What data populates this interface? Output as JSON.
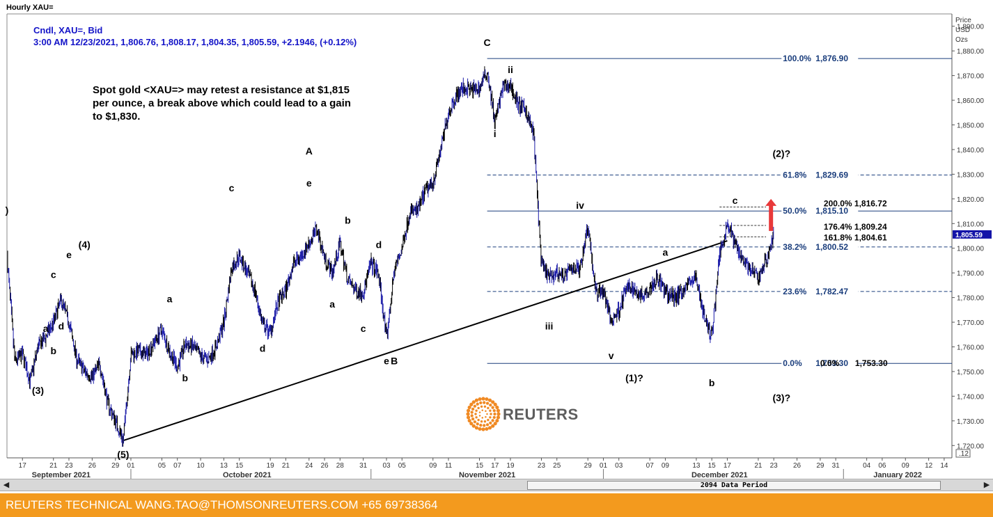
{
  "window": {
    "title": "Hourly XAU="
  },
  "chart_data": {
    "type": "candlestick",
    "instrument": "XAU=",
    "info_lines": [
      "Cndl, XAU=, Bid",
      "3:00 AM 12/23/2021, 1,806.76, 1,808.17, 1,804.35, 1,805.59, +2.1946, (+0.12%)"
    ],
    "last_price": "1,805.59",
    "y_axis": {
      "title": [
        "Price",
        "USD",
        "Ozs"
      ],
      "range": [
        1715,
        1895
      ],
      "ticks": [
        1720,
        1730,
        1740,
        1750,
        1760,
        1770,
        1780,
        1790,
        1800,
        1810,
        1820,
        1830,
        1840,
        1850,
        1860,
        1870,
        1880,
        1890
      ],
      "tick_labels": [
        "1,720.00",
        "1,730.00",
        "1,740.00",
        "1,750.00",
        "1,760.00",
        "1,770.00",
        "1,780.00",
        "1,790.00",
        "1,800.00",
        "1,810.00",
        "1,820.00",
        "1,830.00",
        "1,840.00",
        "1,850.00",
        "1,860.00",
        "1,870.00",
        "1,880.00",
        "1,890.00"
      ],
      "scale_label": ".12"
    },
    "x_axis": {
      "start": "2021-09-15",
      "end": "2022-01-15",
      "day_ticks": [
        {
          "date": "2021-09-17",
          "label": "17"
        },
        {
          "date": "2021-09-21",
          "label": "21"
        },
        {
          "date": "2021-09-23",
          "label": "23"
        },
        {
          "date": "2021-09-26",
          "label": "26"
        },
        {
          "date": "2021-09-29",
          "label": "29"
        },
        {
          "date": "2021-10-01",
          "label": "01"
        },
        {
          "date": "2021-10-05",
          "label": "05"
        },
        {
          "date": "2021-10-07",
          "label": "07"
        },
        {
          "date": "2021-10-10",
          "label": "10"
        },
        {
          "date": "2021-10-13",
          "label": "13"
        },
        {
          "date": "2021-10-15",
          "label": "15"
        },
        {
          "date": "2021-10-19",
          "label": "19"
        },
        {
          "date": "2021-10-21",
          "label": "21"
        },
        {
          "date": "2021-10-24",
          "label": "24"
        },
        {
          "date": "2021-10-26",
          "label": "26"
        },
        {
          "date": "2021-10-28",
          "label": "28"
        },
        {
          "date": "2021-10-31",
          "label": "31"
        },
        {
          "date": "2021-11-03",
          "label": "03"
        },
        {
          "date": "2021-11-05",
          "label": "05"
        },
        {
          "date": "2021-11-09",
          "label": "09"
        },
        {
          "date": "2021-11-11",
          "label": "11"
        },
        {
          "date": "2021-11-15",
          "label": "15"
        },
        {
          "date": "2021-11-17",
          "label": "17"
        },
        {
          "date": "2021-11-19",
          "label": "19"
        },
        {
          "date": "2021-11-23",
          "label": "23"
        },
        {
          "date": "2021-11-25",
          "label": "25"
        },
        {
          "date": "2021-11-29",
          "label": "29"
        },
        {
          "date": "2021-12-01",
          "label": "01"
        },
        {
          "date": "2021-12-03",
          "label": "03"
        },
        {
          "date": "2021-12-07",
          "label": "07"
        },
        {
          "date": "2021-12-09",
          "label": "09"
        },
        {
          "date": "2021-12-13",
          "label": "13"
        },
        {
          "date": "2021-12-15",
          "label": "15"
        },
        {
          "date": "2021-12-17",
          "label": "17"
        },
        {
          "date": "2021-12-21",
          "label": "21"
        },
        {
          "date": "2021-12-23",
          "label": "23"
        },
        {
          "date": "2021-12-26",
          "label": "26"
        },
        {
          "date": "2021-12-29",
          "label": "29"
        },
        {
          "date": "2021-12-31",
          "label": "31"
        },
        {
          "date": "2022-01-04",
          "label": "04"
        },
        {
          "date": "2022-01-06",
          "label": "06"
        },
        {
          "date": "2022-01-09",
          "label": "09"
        },
        {
          "date": "2022-01-12",
          "label": "12"
        },
        {
          "date": "2022-01-14",
          "label": "14"
        }
      ],
      "months": [
        {
          "label": "September 2021",
          "mid": "2021-09-22"
        },
        {
          "label": "October 2021",
          "mid": "2021-10-16"
        },
        {
          "label": "November 2021",
          "mid": "2021-11-16"
        },
        {
          "label": "December 2021",
          "mid": "2021-12-16"
        },
        {
          "label": "January 2022",
          "mid": "2022-01-08"
        }
      ],
      "month_separators": [
        "2021-10-01",
        "2021-11-01",
        "2021-12-01",
        "2022-01-01"
      ]
    },
    "price_path": [
      [
        "2021-09-15",
        1797
      ],
      [
        "2021-09-16",
        1754
      ],
      [
        "2021-09-17",
        1757
      ],
      [
        "2021-09-18",
        1746
      ],
      [
        "2021-09-19",
        1760
      ],
      [
        "2021-09-20",
        1764
      ],
      [
        "2021-09-21",
        1770
      ],
      [
        "2021-09-22",
        1779
      ],
      [
        "2021-09-23",
        1770
      ],
      [
        "2021-09-24",
        1755
      ],
      [
        "2021-09-25",
        1750
      ],
      [
        "2021-09-26",
        1748
      ],
      [
        "2021-09-27",
        1753
      ],
      [
        "2021-09-28",
        1737
      ],
      [
        "2021-09-29",
        1730
      ],
      [
        "2021-09-30",
        1722
      ],
      [
        "2021-10-01",
        1757
      ],
      [
        "2021-10-02",
        1758
      ],
      [
        "2021-10-03",
        1757
      ],
      [
        "2021-10-04",
        1762
      ],
      [
        "2021-10-05",
        1767
      ],
      [
        "2021-10-06",
        1758
      ],
      [
        "2021-10-07",
        1752
      ],
      [
        "2021-10-08",
        1761
      ],
      [
        "2021-10-09",
        1760
      ],
      [
        "2021-10-10",
        1756
      ],
      [
        "2021-10-11",
        1755
      ],
      [
        "2021-10-12",
        1760
      ],
      [
        "2021-10-13",
        1770
      ],
      [
        "2021-10-14",
        1792
      ],
      [
        "2021-10-15",
        1797
      ],
      [
        "2021-10-16",
        1790
      ],
      [
        "2021-10-17",
        1783
      ],
      [
        "2021-10-18",
        1769
      ],
      [
        "2021-10-19",
        1766
      ],
      [
        "2021-10-20",
        1778
      ],
      [
        "2021-10-21",
        1783
      ],
      [
        "2021-10-22",
        1794
      ],
      [
        "2021-10-23",
        1797
      ],
      [
        "2021-10-24",
        1802
      ],
      [
        "2021-10-25",
        1808
      ],
      [
        "2021-10-26",
        1796
      ],
      [
        "2021-10-27",
        1790
      ],
      [
        "2021-10-28",
        1802
      ],
      [
        "2021-10-29",
        1787
      ],
      [
        "2021-10-30",
        1783
      ],
      [
        "2021-10-31",
        1782
      ],
      [
        "2021-11-01",
        1794
      ],
      [
        "2021-11-02",
        1789
      ],
      [
        "2021-11-03",
        1763
      ],
      [
        "2021-11-04",
        1791
      ],
      [
        "2021-11-05",
        1800
      ],
      [
        "2021-11-06",
        1815
      ],
      [
        "2021-11-07",
        1815
      ],
      [
        "2021-11-08",
        1823
      ],
      [
        "2021-11-09",
        1827
      ],
      [
        "2021-11-10",
        1840
      ],
      [
        "2021-11-11",
        1855
      ],
      [
        "2021-11-12",
        1862
      ],
      [
        "2021-11-13",
        1865
      ],
      [
        "2021-11-14",
        1864
      ],
      [
        "2021-11-15",
        1865
      ],
      [
        "2021-11-16",
        1872
      ],
      [
        "2021-11-17",
        1851
      ],
      [
        "2021-11-18",
        1865
      ],
      [
        "2021-11-19",
        1866
      ],
      [
        "2021-11-20",
        1858
      ],
      [
        "2021-11-21",
        1856
      ],
      [
        "2021-11-22",
        1846
      ],
      [
        "2021-11-23",
        1793
      ],
      [
        "2021-11-24",
        1788
      ],
      [
        "2021-11-25",
        1790
      ],
      [
        "2021-11-26",
        1789
      ],
      [
        "2021-11-27",
        1792
      ],
      [
        "2021-11-28",
        1792
      ],
      [
        "2021-11-29",
        1810
      ],
      [
        "2021-11-30",
        1782
      ],
      [
        "2021-12-01",
        1783
      ],
      [
        "2021-12-02",
        1770
      ],
      [
        "2021-12-03",
        1775
      ],
      [
        "2021-12-04",
        1784
      ],
      [
        "2021-12-05",
        1783
      ],
      [
        "2021-12-06",
        1781
      ],
      [
        "2021-12-07",
        1784
      ],
      [
        "2021-12-08",
        1788
      ],
      [
        "2021-12-09",
        1782
      ],
      [
        "2021-12-10",
        1780
      ],
      [
        "2021-12-11",
        1782
      ],
      [
        "2021-12-12",
        1786
      ],
      [
        "2021-12-13",
        1788
      ],
      [
        "2021-12-14",
        1772
      ],
      [
        "2021-12-15",
        1764
      ],
      [
        "2021-12-16",
        1798
      ],
      [
        "2021-12-17",
        1810
      ],
      [
        "2021-12-18",
        1802
      ],
      [
        "2021-12-19",
        1796
      ],
      [
        "2021-12-20",
        1791
      ],
      [
        "2021-12-21",
        1788
      ],
      [
        "2021-12-22",
        1795
      ],
      [
        "2021-12-23",
        1805.59
      ]
    ],
    "wave_labels": [
      {
        "date": "2021-09-15",
        "price": 1814,
        "text": ")"
      },
      {
        "date": "2021-09-20",
        "price": 1766,
        "text": "a"
      },
      {
        "date": "2021-09-21",
        "price": 1788,
        "text": "c"
      },
      {
        "date": "2021-09-21",
        "price": 1757,
        "text": "b"
      },
      {
        "date": "2021-09-22",
        "price": 1767,
        "text": "d"
      },
      {
        "date": "2021-09-23",
        "price": 1796,
        "text": "e"
      },
      {
        "date": "2021-09-25",
        "price": 1800,
        "text": "(4)"
      },
      {
        "date": "2021-09-19",
        "price": 1741,
        "text": "(3)"
      },
      {
        "date": "2021-09-30",
        "price": 1715,
        "text": "(5)"
      },
      {
        "date": "2021-10-06",
        "price": 1778,
        "text": "a"
      },
      {
        "date": "2021-10-08",
        "price": 1746,
        "text": "b"
      },
      {
        "date": "2021-10-14",
        "price": 1823,
        "text": "c"
      },
      {
        "date": "2021-10-18",
        "price": 1758,
        "text": "d"
      },
      {
        "date": "2021-10-24",
        "price": 1838,
        "text": "A"
      },
      {
        "date": "2021-10-24",
        "price": 1825,
        "text": "e"
      },
      {
        "date": "2021-10-27",
        "price": 1776,
        "text": "a"
      },
      {
        "date": "2021-10-29",
        "price": 1810,
        "text": "b"
      },
      {
        "date": "2021-10-31",
        "price": 1766,
        "text": "c"
      },
      {
        "date": "2021-11-02",
        "price": 1800,
        "text": "d"
      },
      {
        "date": "2021-11-03",
        "price": 1753,
        "text": "e"
      },
      {
        "date": "2021-11-04",
        "price": 1753,
        "text": "B"
      },
      {
        "date": "2021-11-16",
        "price": 1882,
        "text": "C"
      },
      {
        "date": "2021-11-17",
        "price": 1845,
        "text": "i"
      },
      {
        "date": "2021-11-19",
        "price": 1871,
        "text": "ii"
      },
      {
        "date": "2021-11-24",
        "price": 1767,
        "text": "iii"
      },
      {
        "date": "2021-11-28",
        "price": 1816,
        "text": "iv"
      },
      {
        "date": "2021-12-02",
        "price": 1755,
        "text": "v"
      },
      {
        "date": "2021-12-05",
        "price": 1746,
        "text": "(1)?"
      },
      {
        "date": "2021-12-09",
        "price": 1797,
        "text": "a"
      },
      {
        "date": "2021-12-15",
        "price": 1744,
        "text": "b"
      },
      {
        "date": "2021-12-18",
        "price": 1818,
        "text": "c"
      },
      {
        "date": "2021-12-24",
        "price": 1837,
        "text": "(2)?"
      },
      {
        "date": "2021-12-24",
        "price": 1738,
        "text": "(3)?"
      }
    ],
    "trendline": {
      "start": [
        "2021-09-30",
        1722
      ],
      "end": [
        "2021-12-17",
        1803
      ]
    },
    "fibonacci": {
      "start_date": "2021-11-16",
      "levels": [
        {
          "pct": "100.0%",
          "price": 1876.9,
          "label": "1,876.90",
          "style": "solid"
        },
        {
          "pct": "61.8%",
          "price": 1829.69,
          "label": "1,829.69",
          "style": "dashed"
        },
        {
          "pct": "50.0%",
          "price": 1815.1,
          "label": "1,815.10",
          "style": "solid"
        },
        {
          "pct": "38.2%",
          "price": 1800.52,
          "label": "1,800.52",
          "style": "dashed"
        },
        {
          "pct": "23.6%",
          "price": 1782.47,
          "label": "1,782.47",
          "style": "dashed"
        },
        {
          "pct": "0.0%",
          "price": 1753.3,
          "label": "1,753.30",
          "style": "solid"
        }
      ]
    },
    "extensions": [
      {
        "pct": "200.0%",
        "price": 1816.72,
        "label": "1,816.72"
      },
      {
        "pct": "176.4%",
        "price": 1809.24,
        "label": "1,809.24"
      },
      {
        "pct": "161.8%",
        "price": 1804.61,
        "label": "1,804.61"
      },
      {
        "pct": "0.0%",
        "price": 1753.3,
        "label": "1,753.30"
      }
    ],
    "annotation": [
      "Spot gold <XAU=> may retest a resistance at $1,815",
      "per ounce, a break above which could lead to a gain",
      "to $1,830."
    ],
    "arrow": {
      "date": "2021-12-23",
      "from": 1807,
      "to": 1820,
      "color": "#e8393a"
    },
    "colors": {
      "candles": "#1a1aa8",
      "fib": "#1a3d7c",
      "trendline": "#000000"
    }
  },
  "scrollbar": {
    "label": "2094 Data Period"
  },
  "logo": {
    "text": "REUTERS"
  },
  "footer": {
    "text": "REUTERS TECHNICAL  WANG.TAO@THOMSONREUTERS.COM  +65 69738364"
  }
}
